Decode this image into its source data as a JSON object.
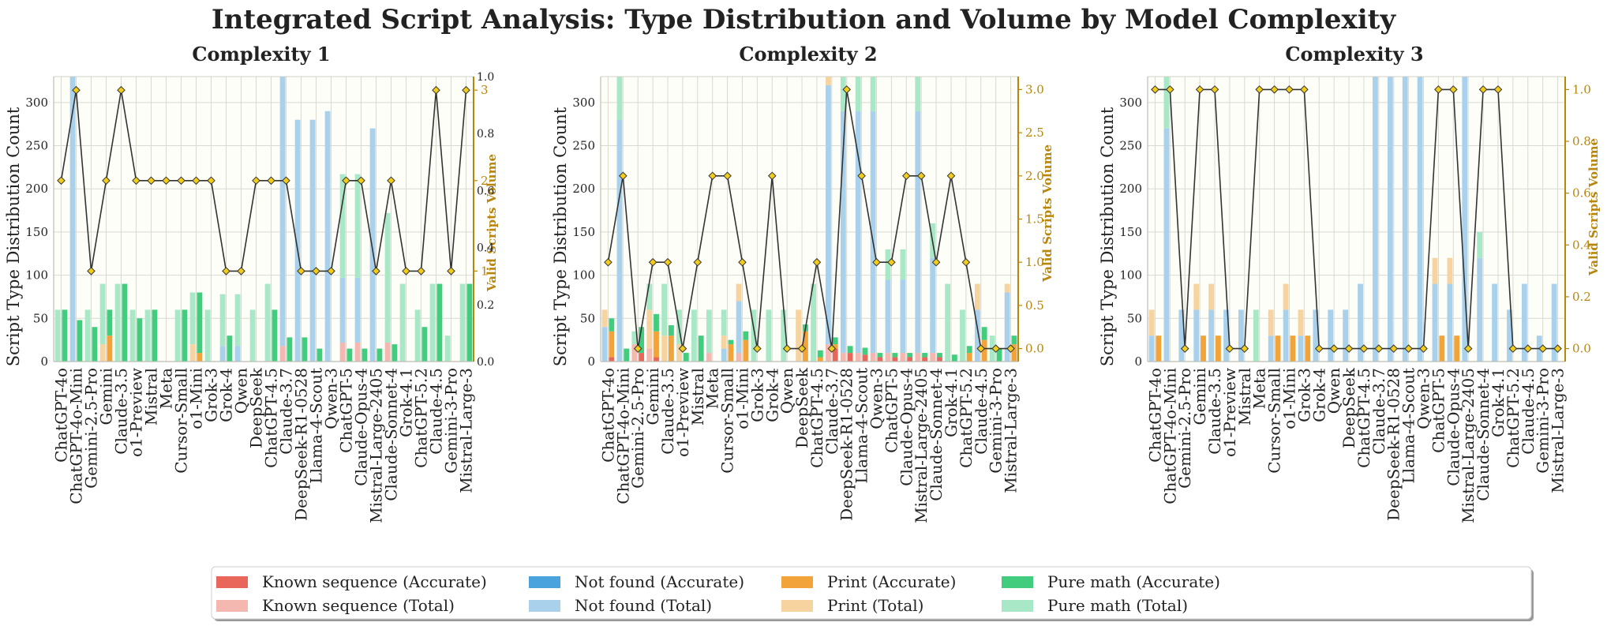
{
  "figure_title": "Integrated Script Analysis: Type Distribution and Volume by Model Complexity",
  "colors": {
    "known_acc": "#e8665a",
    "known_tot": "#f4b8b1",
    "notfound_acc": "#4aa3dc",
    "notfound_tot": "#a9d1ec",
    "print_acc": "#f2a33a",
    "print_tot": "#f7d49f",
    "math_acc": "#41cc7e",
    "math_tot": "#a8e8c6",
    "line": "#333333",
    "marker": "#f2cc1a",
    "right_axis": "#b8860b"
  },
  "legend": [
    {
      "label": "Known sequence (Accurate)",
      "color": "#e8665a"
    },
    {
      "label": "Known sequence (Total)",
      "color": "#f4b8b1"
    },
    {
      "label": "Not found (Accurate)",
      "color": "#4aa3dc"
    },
    {
      "label": "Not found (Total)",
      "color": "#a9d1ec"
    },
    {
      "label": "Print (Accurate)",
      "color": "#f2a33a"
    },
    {
      "label": "Print (Total)",
      "color": "#f7d49f"
    },
    {
      "label": "Pure math (Accurate)",
      "color": "#41cc7e"
    },
    {
      "label": "Pure math (Total)",
      "color": "#a8e8c6"
    }
  ],
  "chart_data": [
    {
      "type": "bar",
      "title": "Complexity 1",
      "ylabel": "Script Type Distribution Count",
      "y2label": "Valid Scripts Volume",
      "ylim": [
        0,
        330
      ],
      "yticks": [
        0,
        50,
        100,
        150,
        200,
        250,
        300
      ],
      "y2lim": [
        0,
        3.15
      ],
      "y2ticks": [
        1,
        2,
        3
      ],
      "y3ticks": [
        "0.0",
        "0.2",
        "0.4",
        "0.6",
        "0.8",
        "1.0"
      ],
      "categories": [
        "ChatGPT-4o",
        "ChatGPT-4o-Mini",
        "Gemini-2.5-Pro",
        "Gemini",
        "Claude-3.5",
        "o1-Preview",
        "Mistral",
        "Meta",
        "Cursor-Small",
        "o1-Mini",
        "Grok-3",
        "Grok-4",
        "Qwen",
        "DeepSeek",
        "ChatGPT-4.5",
        "Claude-3.7",
        "DeepSeek-R1-0528",
        "Llama-4-Scout",
        "Qwen-3",
        "ChatGPT-5",
        "Claude-Opus-4",
        "Mistral-Large-2405",
        "Claude-Sonnet-4",
        "Grok-4.1",
        "ChatGPT-5.2",
        "Claude-4.5",
        "Gemini-3-Pro",
        "Mistral-Large-3"
      ],
      "total": {
        "known": [
          0,
          0,
          0,
          0,
          0,
          0,
          0,
          0,
          0,
          0,
          0,
          0,
          0,
          0,
          0,
          18,
          0,
          0,
          0,
          22,
          22,
          0,
          22,
          0,
          0,
          0,
          0,
          0
        ],
        "notfound": [
          0,
          330,
          0,
          0,
          0,
          0,
          0,
          0,
          0,
          0,
          0,
          18,
          18,
          0,
          0,
          330,
          280,
          280,
          290,
          75,
          75,
          270,
          0,
          0,
          0,
          0,
          0,
          0
        ],
        "print": [
          0,
          0,
          0,
          20,
          0,
          0,
          0,
          0,
          0,
          20,
          0,
          0,
          0,
          0,
          0,
          0,
          0,
          0,
          0,
          0,
          0,
          0,
          0,
          0,
          0,
          0,
          0,
          0
        ],
        "math": [
          60,
          0,
          60,
          70,
          90,
          60,
          60,
          0,
          60,
          60,
          60,
          60,
          60,
          60,
          90,
          0,
          0,
          0,
          0,
          120,
          120,
          0,
          150,
          90,
          60,
          90,
          30,
          90
        ]
      },
      "accurate": {
        "known": [
          0,
          0,
          0,
          0,
          0,
          0,
          0,
          0,
          0,
          0,
          0,
          0,
          0,
          0,
          0,
          0,
          0,
          0,
          0,
          0,
          0,
          0,
          0,
          0,
          0,
          0,
          0,
          0
        ],
        "notfound": [
          0,
          0,
          0,
          0,
          0,
          0,
          0,
          0,
          0,
          0,
          0,
          0,
          0,
          0,
          0,
          0,
          0,
          0,
          0,
          0,
          0,
          0,
          0,
          0,
          0,
          0,
          0,
          0
        ],
        "print": [
          0,
          0,
          0,
          30,
          0,
          0,
          0,
          0,
          0,
          10,
          0,
          0,
          0,
          0,
          0,
          0,
          0,
          0,
          0,
          0,
          0,
          0,
          0,
          0,
          0,
          0,
          0,
          0
        ],
        "math": [
          60,
          48,
          40,
          30,
          90,
          50,
          60,
          0,
          60,
          70,
          0,
          30,
          0,
          0,
          60,
          28,
          28,
          15,
          0,
          15,
          15,
          15,
          20,
          0,
          40,
          90,
          0,
          90
        ]
      },
      "volume": [
        2,
        3,
        1,
        2,
        3,
        2,
        2,
        2,
        2,
        2,
        2,
        1,
        1,
        2,
        2,
        2,
        1,
        1,
        1,
        2,
        2,
        1,
        2,
        1,
        1,
        3,
        1,
        3
      ]
    },
    {
      "type": "bar",
      "title": "Complexity 2",
      "ylabel": "Script Type Distribution Count",
      "y2label": "Valid Scripts Volume",
      "ylim": [
        0,
        330
      ],
      "yticks": [
        0,
        50,
        100,
        150,
        200,
        250,
        300
      ],
      "y2lim": [
        -0.15,
        3.15
      ],
      "y2ticks": [
        "0.0",
        "0.5",
        "1.0",
        "1.5",
        "2.0",
        "2.5",
        "3.0"
      ],
      "categories": [
        "ChatGPT-4o",
        "ChatGPT-4o-Mini",
        "Gemini-2.5-Pro",
        "Gemini",
        "Claude-3.5",
        "o1-Preview",
        "Mistral",
        "Meta",
        "Cursor-Small",
        "o1-Mini",
        "Grok-3",
        "Grok-4",
        "Qwen",
        "DeepSeek",
        "ChatGPT-4.5",
        "Claude-3.7",
        "DeepSeek-R1-0528",
        "Llama-4-Scout",
        "Qwen-3",
        "ChatGPT-5",
        "Claude-Opus-4",
        "Mistral-Large-2405",
        "Claude-Sonnet-4",
        "Grok-4.1",
        "ChatGPT-5.2",
        "Claude-4.5",
        "Gemini-3-Pro",
        "Mistral-Large-3"
      ],
      "total": {
        "known": [
          0,
          0,
          20,
          15,
          0,
          0,
          0,
          10,
          0,
          10,
          0,
          0,
          0,
          0,
          0,
          20,
          10,
          10,
          10,
          10,
          10,
          10,
          10,
          0,
          0,
          0,
          0,
          0
        ],
        "notfound": [
          40,
          280,
          0,
          0,
          0,
          0,
          0,
          0,
          15,
          60,
          0,
          0,
          0,
          0,
          0,
          300,
          280,
          280,
          280,
          85,
          85,
          280,
          110,
          0,
          0,
          60,
          0,
          80
        ],
        "print": [
          20,
          0,
          0,
          45,
          30,
          20,
          0,
          0,
          15,
          20,
          0,
          0,
          0,
          60,
          0,
          10,
          0,
          0,
          0,
          0,
          0,
          0,
          0,
          0,
          0,
          30,
          0,
          10
        ],
        "math": [
          0,
          50,
          15,
          30,
          60,
          40,
          60,
          50,
          30,
          0,
          60,
          60,
          60,
          0,
          90,
          40,
          40,
          40,
          40,
          35,
          35,
          50,
          40,
          90,
          60,
          0,
          30,
          0
        ]
      },
      "accurate": {
        "known": [
          5,
          0,
          10,
          5,
          0,
          0,
          0,
          0,
          0,
          0,
          0,
          0,
          0,
          0,
          0,
          15,
          10,
          8,
          5,
          5,
          5,
          5,
          5,
          0,
          0,
          0,
          0,
          0
        ],
        "notfound": [
          0,
          0,
          0,
          0,
          0,
          0,
          0,
          0,
          0,
          0,
          0,
          0,
          0,
          0,
          0,
          0,
          0,
          0,
          0,
          0,
          0,
          0,
          0,
          0,
          0,
          0,
          0,
          0
        ],
        "print": [
          30,
          0,
          0,
          30,
          30,
          0,
          0,
          0,
          20,
          25,
          0,
          0,
          0,
          35,
          5,
          5,
          0,
          0,
          0,
          0,
          0,
          0,
          0,
          0,
          10,
          25,
          0,
          20
        ],
        "math": [
          15,
          15,
          30,
          20,
          12,
          10,
          30,
          0,
          5,
          10,
          0,
          0,
          0,
          8,
          8,
          8,
          8,
          8,
          5,
          5,
          5,
          5,
          5,
          8,
          8,
          15,
          15,
          10
        ]
      },
      "volume": [
        1,
        2,
        0,
        1,
        1,
        0,
        1,
        2,
        2,
        1,
        0,
        2,
        0,
        0,
        1,
        0,
        3,
        2,
        1,
        1,
        2,
        2,
        1,
        2,
        1,
        0,
        0,
        0
      ]
    },
    {
      "type": "bar",
      "title": "Complexity 3",
      "ylabel": "Script Type Distribution Count",
      "y2label": "Valid Scripts Volume",
      "ylim": [
        0,
        330
      ],
      "yticks": [
        0,
        50,
        100,
        150,
        200,
        250,
        300
      ],
      "y2lim": [
        -0.05,
        1.05
      ],
      "y2ticks": [
        "0.0",
        "0.2",
        "0.4",
        "0.6",
        "0.8",
        "1.0"
      ],
      "categories": [
        "ChatGPT-4o",
        "ChatGPT-4o-Mini",
        "Gemini-2.5-Pro",
        "Gemini",
        "Claude-3.5",
        "o1-Preview",
        "Mistral",
        "Meta",
        "Cursor-Small",
        "o1-Mini",
        "Grok-3",
        "Grok-4",
        "Qwen",
        "DeepSeek",
        "ChatGPT-4.5",
        "Claude-3.7",
        "DeepSeek-R1-0528",
        "Llama-4-Scout",
        "Qwen-3",
        "ChatGPT-5",
        "Claude-Opus-4",
        "Mistral-Large-2405",
        "Claude-Sonnet-4",
        "Grok-4.1",
        "ChatGPT-5.2",
        "Claude-4.5",
        "Gemini-3-Pro",
        "Mistral-Large-3"
      ],
      "total": {
        "known": [
          0,
          0,
          0,
          0,
          0,
          0,
          0,
          0,
          0,
          0,
          0,
          0,
          0,
          0,
          0,
          0,
          0,
          0,
          0,
          0,
          0,
          0,
          0,
          0,
          0,
          0,
          0,
          0
        ],
        "notfound": [
          30,
          270,
          60,
          60,
          60,
          60,
          60,
          0,
          30,
          60,
          30,
          60,
          60,
          60,
          90,
          330,
          330,
          330,
          330,
          90,
          90,
          330,
          120,
          90,
          60,
          90,
          30,
          90
        ],
        "print": [
          30,
          0,
          0,
          30,
          30,
          0,
          0,
          0,
          30,
          30,
          30,
          0,
          0,
          0,
          0,
          0,
          0,
          0,
          0,
          30,
          30,
          0,
          0,
          0,
          0,
          0,
          0,
          0
        ],
        "math": [
          0,
          60,
          0,
          0,
          0,
          0,
          0,
          60,
          0,
          0,
          0,
          0,
          0,
          0,
          0,
          0,
          0,
          0,
          0,
          0,
          0,
          0,
          30,
          0,
          0,
          0,
          0,
          0
        ]
      },
      "accurate": {
        "known": [
          0,
          0,
          0,
          0,
          0,
          0,
          0,
          0,
          0,
          0,
          0,
          0,
          0,
          0,
          0,
          0,
          0,
          0,
          0,
          0,
          0,
          0,
          0,
          0,
          0,
          0,
          0,
          0
        ],
        "notfound": [
          0,
          0,
          0,
          0,
          0,
          0,
          0,
          0,
          0,
          0,
          0,
          0,
          0,
          0,
          0,
          0,
          0,
          0,
          0,
          0,
          0,
          0,
          0,
          0,
          0,
          0,
          0,
          0
        ],
        "print": [
          30,
          0,
          0,
          30,
          30,
          0,
          0,
          0,
          30,
          30,
          30,
          0,
          0,
          0,
          0,
          0,
          0,
          0,
          0,
          30,
          30,
          0,
          0,
          0,
          0,
          0,
          0,
          0
        ],
        "math": [
          0,
          0,
          0,
          0,
          0,
          0,
          0,
          0,
          0,
          0,
          0,
          0,
          0,
          0,
          0,
          0,
          0,
          0,
          0,
          0,
          0,
          0,
          0,
          0,
          0,
          0,
          0,
          0
        ]
      },
      "volume": [
        1,
        1,
        0,
        1,
        1,
        0,
        0,
        1,
        1,
        1,
        1,
        0,
        0,
        0,
        0,
        0,
        0,
        0,
        0,
        1,
        1,
        0,
        1,
        1,
        0,
        0,
        0,
        0
      ]
    }
  ]
}
